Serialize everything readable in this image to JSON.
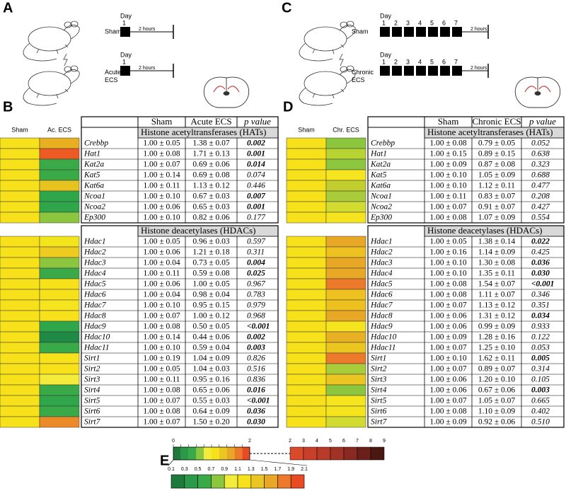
{
  "panel_a": {
    "label": "A",
    "sham": {
      "name": [
        "Sham"
      ],
      "day": "Day",
      "days": [
        "1"
      ],
      "duration": "2 hours"
    },
    "ecs": {
      "name": [
        "Acute",
        "ECS"
      ],
      "day": "Day",
      "days": [
        "1"
      ],
      "duration": "2 hours"
    }
  },
  "panel_c": {
    "label": "C",
    "sham": {
      "name": [
        "Sham"
      ],
      "day": "Day",
      "days": [
        "1",
        "2",
        "3",
        "4",
        "5",
        "6",
        "7"
      ],
      "duration": "2 hours"
    },
    "ecs": {
      "name": [
        "Chronic",
        "ECS"
      ],
      "day": "Day",
      "days": [
        "1",
        "2",
        "3",
        "4",
        "5",
        "6",
        "7"
      ],
      "duration": "2 hours"
    }
  },
  "panel_b": {
    "label": "B",
    "heatmap": {
      "headers": [
        "Sham",
        "Ac. ECS"
      ],
      "sham_color": "#f7e11b"
    },
    "table": {
      "headers": [
        "Sham",
        "Acute ECS",
        "p value"
      ],
      "sections": [
        {
          "title": "Histone acetyltransferases (HATs)",
          "rows": [
            [
              "Crebbp",
              "1.00 ± 0.05",
              "1.38 ± 0.07",
              "0.002",
              true,
              "#e8b020"
            ],
            [
              "Hat1",
              "1.00 ± 0.08",
              "1.71 ± 0.13",
              "0.001",
              true,
              "#ee5a24"
            ],
            [
              "Kat2a",
              "1.00 ± 0.07",
              "0.69 ± 0.06",
              "0.014",
              true,
              "#3aaa48"
            ],
            [
              "Kat5",
              "1.00 ± 0.14",
              "0.69 ± 0.08",
              "0.074",
              false,
              "#3aaa48"
            ],
            [
              "Kat6a",
              "1.00 ± 0.11",
              "1.13 ± 0.12",
              "0.446",
              false,
              "#e8c21e"
            ],
            [
              "Ncoa1",
              "1.00 ± 0.10",
              "0.67 ± 0.03",
              "0.007",
              true,
              "#2fa64a"
            ],
            [
              "Ncoa2",
              "1.00 ± 0.06",
              "0.65 ± 0.03",
              "0.001",
              true,
              "#2fa64a"
            ],
            [
              "Ep300",
              "1.00 ± 0.10",
              "0.82 ± 0.06",
              "0.177",
              false,
              "#8cc63f"
            ]
          ]
        },
        {
          "title": "Histone deacetylases (HDACs)",
          "rows": [
            [
              "Hdac1",
              "1.00 ± 0.05",
              "0.96 ± 0.03",
              "0.597",
              false,
              "#f2e51c"
            ],
            [
              "Hdac2",
              "1.00 ± 0.06",
              "1.21 ± 0.18",
              "0.311",
              false,
              "#eecb1f"
            ],
            [
              "Hdac3",
              "1.00 ± 0.04",
              "0.73 ± 0.05",
              "0.004",
              true,
              "#8cc63f"
            ],
            [
              "Hdac4",
              "1.00 ± 0.11",
              "0.59 ± 0.08",
              "0.025",
              true,
              "#3aaa48"
            ],
            [
              "Hdac5",
              "1.00 ± 0.06",
              "1.00 ± 0.05",
              "0.967",
              false,
              "#f7e11b"
            ],
            [
              "Hdac6",
              "1.00 ± 0.04",
              "0.98 ± 0.04",
              "0.783",
              false,
              "#f7e11b"
            ],
            [
              "Hdac7",
              "1.00 ± 0.10",
              "0.95 ± 0.15",
              "0.979",
              false,
              "#f5e41e"
            ],
            [
              "Hdac8",
              "1.00 ± 0.07",
              "1.00 ± 0.12",
              "0.968",
              false,
              "#f7e11b"
            ],
            [
              "Hdac9",
              "1.00 ± 0.08",
              "0.50 ± 0.05",
              "<0.001",
              true,
              "#2fa64a"
            ],
            [
              "Hdac10",
              "1.00 ± 0.14",
              "0.44 ± 0.06",
              "0.002",
              true,
              "#1e8a45"
            ],
            [
              "Hdac11",
              "1.00 ± 0.10",
              "0.59 ± 0.04",
              "0.003",
              true,
              "#3aaa48"
            ],
            [
              "Sirt1",
              "1.00 ± 0.19",
              "1.04 ± 0.09",
              "0.826",
              false,
              "#f7e11b"
            ],
            [
              "Sirt2",
              "1.00 ± 0.05",
              "1.04 ± 0.03",
              "0.516",
              false,
              "#f7e11b"
            ],
            [
              "Sirt3",
              "1.00 ± 0.11",
              "0.95 ± 0.16",
              "0.836",
              false,
              "#f3ec3a"
            ],
            [
              "Sirt4",
              "1.00 ± 0.08",
              "0.65 ± 0.06",
              "0.016",
              true,
              "#3aaa48"
            ],
            [
              "Sirt5",
              "1.00 ± 0.07",
              "0.55 ± 0.03",
              "<0.001",
              true,
              "#2fa64a"
            ],
            [
              "Sirt6",
              "1.00 ± 0.08",
              "0.64 ± 0.09",
              "0.036",
              true,
              "#3aaa48"
            ],
            [
              "Sirt7",
              "1.00 ± 0.07",
              "1.50 ± 0.20",
              "0.030",
              true,
              "#ec8a2a"
            ]
          ]
        }
      ]
    }
  },
  "panel_d": {
    "label": "D",
    "heatmap": {
      "headers": [
        "Sham",
        "Chr. ECS"
      ],
      "sham_color": "#f7e11b"
    },
    "table": {
      "headers": [
        "Sham",
        "Chronic ECS",
        "p value"
      ],
      "sections": [
        {
          "title": "Histone acetyltransferases (HATs)",
          "rows": [
            [
              "Crebbp",
              "1.00 ± 0.08",
              "0.79 ± 0.05",
              "0.052",
              false,
              "#8cc63f"
            ],
            [
              "Hat1",
              "1.00 ± 0.15",
              "0.89 ± 0.15",
              "0.638",
              false,
              "#b8d432"
            ],
            [
              "Kat2a",
              "1.00 ± 0.09",
              "0.87 ± 0.08",
              "0.323",
              false,
              "#8cc63f"
            ],
            [
              "Kat5",
              "1.00 ± 0.10",
              "1.05 ± 0.09",
              "0.688",
              false,
              "#f5e41e"
            ],
            [
              "Kat6a",
              "1.00 ± 0.10",
              "1.12 ± 0.11",
              "0.477",
              false,
              "#c2ce2e"
            ],
            [
              "Ncoa1",
              "1.00 ± 0.11",
              "0.83 ± 0.07",
              "0.208",
              false,
              "#a8cc3a"
            ],
            [
              "Ncoa2",
              "1.00 ± 0.07",
              "0.91 ± 0.07",
              "0.427",
              false,
              "#d2dc30"
            ],
            [
              "Ep300",
              "1.00 ± 0.08",
              "1.07 ± 0.09",
              "0.554",
              false,
              "#f5e41e"
            ]
          ]
        },
        {
          "title": "Histone deacetylases (HDACs)",
          "rows": [
            [
              "Hdac1",
              "1.00 ± 0.05",
              "1.38 ± 0.14",
              "0.022",
              true,
              "#e8a826"
            ],
            [
              "Hdac2",
              "1.00 ± 0.16",
              "1.14 ± 0.09",
              "0.425",
              false,
              "#eec020"
            ],
            [
              "Hdac3",
              "1.00 ± 0.10",
              "1.30 ± 0.08",
              "0.036",
              true,
              "#e8a826"
            ],
            [
              "Hdac4",
              "1.00 ± 0.10",
              "1.35 ± 0.11",
              "0.030",
              true,
              "#e8a826"
            ],
            [
              "Hdac5",
              "1.00 ± 0.08",
              "1.54 ± 0.07",
              "<0.001",
              true,
              "#ec7a2a"
            ],
            [
              "Hdac6",
              "1.00 ± 0.08",
              "1.11 ± 0.07",
              "0.346",
              false,
              "#eec020"
            ],
            [
              "Hdac7",
              "1.00 ± 0.07",
              "1.13 ± 0.12",
              "0.351",
              false,
              "#eec020"
            ],
            [
              "Hdac8",
              "1.00 ± 0.06",
              "1.31 ± 0.12",
              "0.034",
              true,
              "#e8a826"
            ],
            [
              "Hdac9",
              "1.00 ± 0.06",
              "0.99 ± 0.09",
              "0.933",
              false,
              "#f5e41e"
            ],
            [
              "Hdac10",
              "1.00 ± 0.09",
              "1.28 ± 0.16",
              "0.122",
              false,
              "#e8b024"
            ],
            [
              "Hdac11",
              "1.00 ± 0.07",
              "1.25 ± 0.10",
              "0.053",
              false,
              "#ecc620"
            ],
            [
              "Sirt1",
              "1.00 ± 0.10",
              "1.62 ± 0.11",
              "0.005",
              true,
              "#ec7a2a"
            ],
            [
              "Sirt2",
              "1.00 ± 0.07",
              "0.89 ± 0.07",
              "0.314",
              false,
              "#a8cc3a"
            ],
            [
              "Sirt3",
              "1.00 ± 0.06",
              "1.20 ± 0.10",
              "0.105",
              false,
              "#ecc620"
            ],
            [
              "Sirt4",
              "1.00 ± 0.06",
              "0.67 ± 0.06",
              "0.003",
              true,
              "#8cc63f"
            ],
            [
              "Sirt5",
              "1.00 ± 0.07",
              "1.05 ± 0.07",
              "0.665",
              false,
              "#f5e41e"
            ],
            [
              "Sirt6",
              "1.00 ± 0.08",
              "1.10 ± 0.09",
              "0.402",
              false,
              "#f5e41e"
            ],
            [
              "Sirt7",
              "1.00 ± 0.09",
              "0.92 ± 0.06",
              "0.510",
              false,
              "#d2dc30"
            ]
          ]
        }
      ]
    }
  },
  "panel_e": {
    "label": "E",
    "top_labels": [
      "0",
      "2"
    ],
    "high_labels": [
      "2",
      "3",
      "4",
      "5",
      "6",
      "7",
      "8",
      "9"
    ],
    "high_colors": [
      "#d84a2a",
      "#c8402a",
      "#b83a28",
      "#a03226",
      "#882a22",
      "#6a2018",
      "#4a1810"
    ],
    "low_labels": [
      "0.1",
      "0.3",
      "0.5",
      "0.7",
      "0.9",
      "1.1",
      "1.3",
      "1.5",
      "1.7",
      "1.9",
      "2.1"
    ],
    "low_colors": [
      "#1e7a3a",
      "#2a9a48",
      "#3aaa48",
      "#8cc63f",
      "#f3ec3a",
      "#f7e11b",
      "#ecc620",
      "#e8a826",
      "#ec7a2a",
      "#e84a24"
    ]
  }
}
